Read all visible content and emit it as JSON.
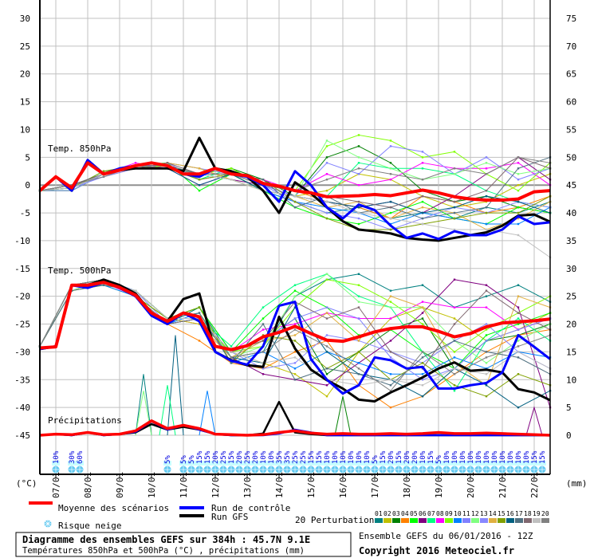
{
  "chart_data": {
    "type": "line",
    "title": "Diagramme des ensembles GEFS sur 384h : 45.7N 9.1E",
    "subtitle": "Températures 850hPa et 500hPa (°C) , précipitations (mm)",
    "run_info": "Ensemble GEFS du 06/01/2016 - 12Z",
    "copyright": "Copyright 2016 Meteociel.fr",
    "left_axis": {
      "label": "(°C)",
      "range": [
        -45,
        30
      ],
      "ticks": [
        30,
        25,
        20,
        15,
        10,
        5,
        0,
        -5,
        -10,
        -15,
        -20,
        -25,
        -30,
        -35,
        -40,
        -45
      ]
    },
    "right_axis": {
      "label": "(mm)",
      "range": [
        0,
        75
      ],
      "ticks": [
        75,
        70,
        65,
        60,
        55,
        50,
        45,
        40,
        35,
        30,
        25,
        20,
        15,
        10,
        5,
        0
      ]
    },
    "x_axis": {
      "hours_range": [
        0,
        384
      ],
      "date_ticks": [
        "07/01",
        "08/01",
        "09/01",
        "10/01",
        "11/01",
        "12/01",
        "13/01",
        "14/01",
        "15/01",
        "16/01",
        "17/01",
        "18/01",
        "19/01",
        "20/01",
        "21/01",
        "22/01"
      ]
    },
    "panel_labels": {
      "t850": "Temp. 850hPa",
      "t500": "Temp. 500hPa",
      "precip": "Précipitations"
    },
    "main_step_hours": 12,
    "pert_step_hours": 24,
    "series": {
      "mean_850": [
        -1,
        1.5,
        -0.5,
        4,
        2,
        2.7,
        3.5,
        4,
        3.5,
        2,
        2,
        3,
        2,
        1.7,
        0.3,
        -0.2,
        -1,
        -1.4,
        -2.1,
        -2,
        -1.9,
        -1.7,
        -1.9,
        -1.4,
        -0.9,
        -1.4,
        -2.1,
        -2.5,
        -2.7,
        -2.7,
        -2.5,
        -1.2,
        -1
      ],
      "control_850": [
        -1,
        1.5,
        -1,
        4.5,
        2,
        3,
        3.5,
        4,
        3.5,
        2,
        1.5,
        3,
        2,
        1.5,
        0,
        -3,
        2.5,
        0,
        -4,
        -6,
        -3.5,
        -4.5,
        -7.3,
        -9.5,
        -8.7,
        -9.7,
        -8.3,
        -9,
        -9,
        -8,
        -5.6,
        -7,
        -6.7
      ],
      "gfs_850": [
        -1,
        1.5,
        -1,
        4.5,
        2,
        2.7,
        3,
        3,
        3,
        2.5,
        8.5,
        3,
        2.5,
        1.5,
        -1,
        -5,
        0.5,
        -1.5,
        -4,
        -6.5,
        -8,
        -8.3,
        -8.7,
        -9.5,
        -9.8,
        -10,
        -9.5,
        -9,
        -8.5,
        -7.3,
        -5.5,
        -5.3,
        -6.6
      ],
      "mean_500": [
        -29.3,
        -29.1,
        -18,
        -18,
        -17.5,
        -18.4,
        -19.8,
        -23,
        -24.5,
        -23,
        -23.7,
        -29,
        -29.6,
        -28.9,
        -27.3,
        -26.5,
        -25.4,
        -26.7,
        -27.9,
        -28.1,
        -27.3,
        -26.4,
        -25.8,
        -25.5,
        -25.5,
        -26.3,
        -27.3,
        -26.7,
        -25.5,
        -24.8,
        -24.6,
        -24.4,
        -24.1
      ],
      "control_500": [
        -29.5,
        -29,
        -18,
        -18.5,
        -17.5,
        -18.5,
        -20,
        -23.5,
        -25,
        -23,
        -24.5,
        -30,
        -31.6,
        -32.3,
        -29,
        -21.7,
        -21,
        -31.3,
        -35,
        -37.5,
        -36,
        -31,
        -31.5,
        -33,
        -32.7,
        -36.6,
        -36.6,
        -36,
        -35.6,
        -33.7,
        -27,
        -29.1,
        -31.3
      ],
      "gfs_500": [
        -29.5,
        -29,
        -18,
        -18,
        -17,
        -18,
        -19.5,
        -23,
        -24.5,
        -20.5,
        -19.5,
        -30,
        -31.5,
        -32.4,
        -32.7,
        -23.7,
        -29.4,
        -33.2,
        -35.1,
        -36.6,
        -38.6,
        -38.9,
        -37.3,
        -36,
        -34.6,
        -33,
        -31.9,
        -33.4,
        -33.2,
        -33.7,
        -36.7,
        -37.3,
        -38.7
      ],
      "mean_precip": [
        0,
        0.2,
        0.1,
        0.5,
        0.1,
        0.2,
        0.8,
        2.6,
        1.2,
        1.8,
        1.2,
        0.2,
        0.1,
        0,
        0.1,
        0.5,
        0.8,
        0.4,
        0.2,
        0.3,
        0.2,
        0.2,
        0.3,
        0.2,
        0.3,
        0.5,
        0.3,
        0.3,
        0.4,
        0.3,
        0.2,
        0.1,
        0
      ],
      "control_precip": [
        0,
        0.2,
        0,
        0.5,
        0,
        0.2,
        0.6,
        2.5,
        1,
        1.8,
        1,
        0.2,
        0,
        0,
        0,
        0.3,
        1,
        0.5,
        0,
        0,
        0,
        0,
        0,
        0,
        0,
        0,
        0,
        0,
        0,
        0,
        0,
        0,
        0
      ],
      "gfs_precip": [
        0,
        0.2,
        0,
        0.5,
        0,
        0.2,
        0.5,
        2,
        1,
        1.5,
        1,
        0.2,
        0,
        0,
        0.3,
        6,
        0.5,
        0.2,
        0,
        0,
        0,
        0,
        0,
        0,
        0,
        0,
        0,
        0,
        0,
        0,
        0,
        0,
        0
      ]
    },
    "perturbations": {
      "colors": [
        "#008080",
        "#c0c000",
        "#008000",
        "#ff8000",
        "#00ff00",
        "#800080",
        "#00ff80",
        "#ff00ff",
        "#80ff00",
        "#0080ff",
        "#8080ff",
        "#80ff80",
        "#8888ff",
        "#e0b040",
        "#80a000",
        "#006080",
        "#507080",
        "#806870",
        "#c0c0c0",
        "#808080"
      ],
      "t850": [
        [
          -1,
          0,
          2,
          3.5,
          3,
          1,
          2,
          -1,
          -3,
          -5,
          -4,
          -6,
          -5,
          -6,
          -4,
          -5,
          -3
        ],
        [
          -1,
          -1,
          2,
          3,
          4,
          3,
          1,
          -1,
          -2,
          -1,
          2,
          1,
          -2,
          -4,
          -3,
          0,
          2
        ],
        [
          -1,
          -1,
          2,
          3.5,
          3,
          2,
          3,
          1,
          -2,
          5,
          7,
          4,
          -1,
          -3,
          -2,
          -4,
          -5
        ],
        [
          -1,
          0,
          1.5,
          3,
          4,
          1,
          2,
          0,
          -1,
          -3,
          -4,
          -6,
          -2,
          -3,
          -5,
          -4,
          -2
        ],
        [
          -1,
          -1,
          2,
          3.5,
          4,
          -1,
          2,
          -1,
          -4,
          -6,
          -7,
          -5,
          -3,
          -6,
          -7,
          -4,
          -5
        ],
        [
          -1,
          0,
          2,
          3.5,
          3,
          2,
          1,
          0,
          -2,
          -3,
          -4,
          -3,
          -5,
          -2,
          2,
          5,
          1
        ],
        [
          -1,
          -0.5,
          2.5,
          3,
          3,
          1,
          3,
          0,
          -1,
          -2,
          4,
          3,
          3,
          2,
          -1,
          -3,
          -4
        ],
        [
          -1,
          0,
          2,
          4,
          3,
          0,
          2,
          1,
          -1,
          2,
          0,
          1,
          4,
          3,
          3,
          4,
          0
        ],
        [
          -1,
          -0.5,
          2,
          3,
          3.5,
          2,
          3,
          0,
          -1,
          7,
          9,
          8,
          5,
          6,
          2,
          -1,
          4
        ],
        [
          -1,
          0,
          2,
          3.5,
          3,
          2,
          1,
          -1,
          -3,
          -4,
          -5,
          -7,
          -5,
          -6,
          -7,
          -7,
          -4
        ],
        [
          -1,
          -1,
          2,
          3,
          4,
          1,
          2,
          0,
          -2,
          4,
          2,
          7,
          6,
          2,
          5,
          1,
          3
        ],
        [
          -1,
          0,
          2,
          3.5,
          3,
          2,
          1,
          -1,
          -2,
          8,
          5,
          3,
          1,
          2,
          4,
          2,
          3
        ],
        [
          -1,
          -0.5,
          1.5,
          3,
          4,
          3,
          2,
          0,
          -3,
          -5,
          -6,
          -8,
          -6,
          -4,
          -5,
          -3,
          -4
        ],
        [
          -1,
          0,
          2,
          3,
          4,
          3,
          1,
          -1,
          -2,
          -4,
          -3,
          -6,
          -4,
          -5,
          -8,
          -6,
          -3
        ],
        [
          -1,
          -0.5,
          2.5,
          3.5,
          3,
          1,
          2,
          1,
          -3,
          -6,
          -8,
          -8,
          -7,
          -6,
          -5,
          -5,
          -2
        ],
        [
          -1,
          0,
          2,
          3,
          3,
          0,
          2,
          -1,
          -2,
          -3,
          -4,
          -3,
          -5,
          -4,
          -2,
          -3,
          -5
        ],
        [
          -1,
          -0.5,
          2,
          3.5,
          3.5,
          2,
          2,
          1,
          -4,
          -2,
          -5,
          -4,
          -6,
          -5,
          -4,
          3,
          5
        ],
        [
          -1,
          0,
          2,
          3,
          4,
          2,
          2,
          0,
          -1,
          -2,
          -3,
          -4,
          -2,
          -3,
          -1,
          5,
          3
        ],
        [
          -1,
          -0.5,
          2,
          3.5,
          3,
          2,
          1,
          -1,
          -2,
          -3,
          -5,
          -6,
          -7,
          -8,
          -8,
          -9,
          -13
        ],
        [
          -1,
          0,
          1.5,
          3.5,
          3,
          2,
          2,
          0,
          -1,
          1,
          3,
          2,
          1,
          3,
          2,
          5,
          4
        ]
      ],
      "t500": [
        [
          -29,
          -18,
          -17,
          -20,
          -25,
          -22,
          -31,
          -30,
          -20,
          -17,
          -16,
          -19,
          -18,
          -22,
          -20,
          -18,
          -21
        ],
        [
          -29,
          -19,
          -18,
          -20,
          -24,
          -25,
          -30,
          -32,
          -34,
          -38,
          -30,
          -24,
          -22,
          -24,
          -28,
          -26,
          -23
        ],
        [
          -29,
          -18,
          -17.5,
          -19,
          -24,
          -22,
          -30,
          -28,
          -24,
          -34,
          -30,
          -26,
          -24,
          -33,
          -28,
          -27,
          -25
        ],
        [
          -29,
          -18,
          -17,
          -20,
          -25,
          -28,
          -32,
          -33,
          -30,
          -28,
          -36,
          -40,
          -38,
          -34,
          -30,
          -27,
          -26
        ],
        [
          -29,
          -18,
          -18,
          -19,
          -24,
          -22,
          -30,
          -24,
          -19,
          -22,
          -27,
          -26,
          -30,
          -33,
          -27,
          -25,
          -23
        ],
        [
          -29,
          -19,
          -17,
          -20,
          -25,
          -24,
          -31,
          -34,
          -35,
          -36,
          -32,
          -28,
          -23,
          -17,
          -18,
          -22,
          -40
        ],
        [
          -29,
          -18,
          -17,
          -19,
          -24,
          -24,
          -29,
          -22,
          -18,
          -16,
          -20,
          -22,
          -30,
          -37,
          -28,
          -24,
          -28
        ],
        [
          -29,
          -18,
          -17.5,
          -20,
          -25,
          -24,
          -30,
          -26,
          -25,
          -23,
          -24,
          -24,
          -21,
          -22,
          -22,
          -26,
          -24
        ],
        [
          -29,
          -18,
          -17,
          -20,
          -24,
          -25,
          -30,
          -29,
          -22,
          -17,
          -18,
          -21,
          -25,
          -30,
          -26,
          -23,
          -20
        ],
        [
          -29,
          -18,
          -18,
          -20,
          -25,
          -23,
          -32,
          -30,
          -33,
          -30,
          -32,
          -34,
          -34,
          -31,
          -33,
          -30,
          -31
        ],
        [
          -29,
          -18,
          -17,
          -19,
          -25,
          -24,
          -31,
          -28,
          -24,
          -22,
          -24,
          -31,
          -35,
          -33,
          -28,
          -26,
          -24
        ],
        [
          -29,
          -19,
          -17,
          -20,
          -24,
          -23,
          -31,
          -29,
          -20,
          -16,
          -21,
          -22,
          -22,
          -28,
          -32,
          -28,
          -25
        ],
        [
          -29,
          -18,
          -17,
          -20,
          -25,
          -24,
          -30,
          -33,
          -32,
          -27,
          -28,
          -30,
          -32,
          -28,
          -25,
          -30,
          -33
        ],
        [
          -29,
          -18,
          -17.5,
          -19,
          -24,
          -25,
          -31,
          -28,
          -27,
          -23,
          -28,
          -20,
          -22,
          -32,
          -36,
          -20,
          -22
        ],
        [
          -29,
          -18,
          -17,
          -20,
          -24,
          -22,
          -32,
          -27,
          -28,
          -33,
          -30,
          -35,
          -32,
          -36,
          -38,
          -34,
          -36
        ],
        [
          -29,
          -18,
          -17,
          -20,
          -25,
          -24,
          -31,
          -32,
          -22,
          -30,
          -34,
          -35,
          -38,
          -33,
          -36,
          -40,
          -37
        ],
        [
          -29,
          -19,
          -18,
          -19,
          -24,
          -23,
          -32,
          -25,
          -35,
          -33,
          -34,
          -36,
          -31,
          -28,
          -30,
          -31,
          -34
        ],
        [
          -29,
          -18,
          -17,
          -20,
          -25,
          -24,
          -30,
          -28,
          -21,
          -24,
          -22,
          -30,
          -33,
          -25,
          -19,
          -23,
          -26
        ],
        [
          -29,
          -18,
          -17.5,
          -19,
          -24,
          -24,
          -30,
          -32,
          -31,
          -35,
          -36,
          -35,
          -36,
          -33,
          -34,
          -30,
          -33
        ],
        [
          -29,
          -18,
          -17,
          -20,
          -25,
          -24,
          -31,
          -30,
          -26,
          -29,
          -33,
          -37,
          -30,
          -34,
          -31,
          -29,
          -27
        ]
      ],
      "precip_peaks": [
        {
          "member": 1,
          "hours": 78,
          "mm": 11
        },
        {
          "member": 12,
          "hours": 78,
          "mm": 8
        },
        {
          "member": 16,
          "hours": 102,
          "mm": 18
        },
        {
          "member": 7,
          "hours": 96,
          "mm": 9
        },
        {
          "member": 10,
          "hours": 126,
          "mm": 8
        },
        {
          "member": 3,
          "hours": 228,
          "mm": 7
        },
        {
          "member": 6,
          "hours": 372,
          "mm": 5
        }
      ]
    },
    "snow_risk": {
      "hours": [
        12,
        24,
        30,
        96,
        108,
        114,
        120,
        126,
        132,
        138,
        144,
        150,
        156,
        162,
        168,
        174,
        180,
        186,
        192,
        198,
        204,
        210,
        216,
        222,
        228,
        234,
        240,
        246,
        252,
        258,
        264,
        270,
        276,
        282,
        288,
        294,
        300,
        306,
        312,
        318,
        324,
        330,
        336,
        342,
        348,
        354,
        360,
        366,
        372,
        378
      ],
      "labels": [
        "10%",
        "30%",
        "60%",
        "5%",
        "5%",
        "5%",
        "15%",
        "15%",
        "20%",
        "25%",
        "15%",
        "20%",
        "25%",
        "20%",
        "10%",
        "10%",
        "35%",
        "35%",
        "25%",
        "25%",
        "15%",
        "15%",
        "10%",
        "10%",
        "10%",
        "10%",
        "10%",
        "10%",
        "5%",
        "15%",
        "20%",
        "15%",
        "20%",
        "20%",
        "10%",
        "15%",
        "5%",
        "10%",
        "10%",
        "10%",
        "10%",
        "10%",
        "10%",
        "10%",
        "10%",
        "10%",
        "10%",
        "10%",
        "15%",
        "15%"
      ]
    }
  },
  "legend": {
    "mean": "Moyenne des scénarios",
    "control": "Run de contrôle",
    "gfs": "Run GFS",
    "snow": "Risque neige",
    "perturbations": "20 Perturbations",
    "pert_numbers": [
      "01",
      "02",
      "03",
      "04",
      "05",
      "06",
      "07",
      "08",
      "09",
      "10",
      "11",
      "12",
      "13",
      "14",
      "15",
      "16",
      "17",
      "18",
      "19",
      "20"
    ]
  },
  "colors": {
    "mean": "#ff0000",
    "control": "#0000ff",
    "gfs": "#000000",
    "grid": "#c0c0c0",
    "snow": "#60c8f0",
    "snow_band": "#c8ffff"
  }
}
